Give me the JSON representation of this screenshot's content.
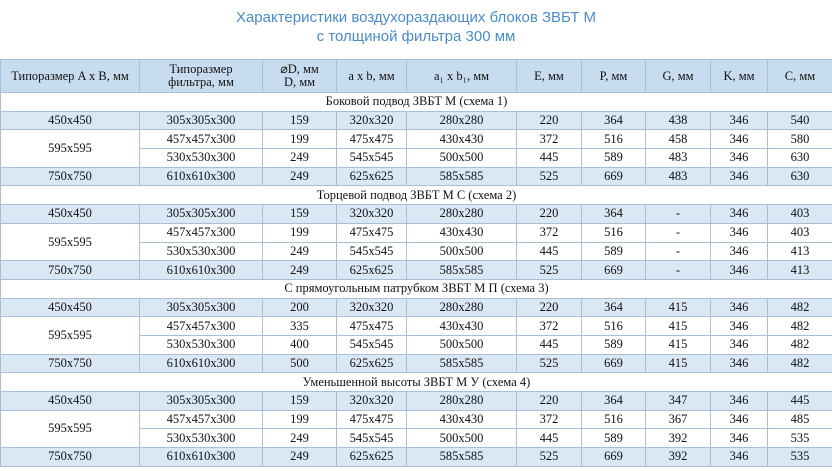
{
  "header": {
    "title": [
      "Характеристики воздухораздающих блоков ЗВБТ М",
      "с толщиной фильтра 300 мм"
    ]
  },
  "table": {
    "columns": [
      [
        "Типоразмер A x B, мм"
      ],
      [
        "Типоразмер",
        "фильтра, мм"
      ],
      [
        "⌀D, мм",
        "D, мм"
      ],
      [
        "a x b, мм"
      ],
      [
        "a₁ x b₁, мм"
      ],
      [
        "E, мм"
      ],
      [
        "P, мм"
      ],
      [
        "G, мм"
      ],
      [
        "K, мм"
      ],
      [
        "C, мм"
      ]
    ],
    "sections": [
      {
        "title": "Боковой подвод ЗВБТ М (схема 1)",
        "groups": [
          {
            "size": "450x450",
            "rows": [
              [
                "305x305x300",
                "159",
                "320x320",
                "280x280",
                "220",
                "364",
                "438",
                "346",
                "540"
              ]
            ]
          },
          {
            "size": "595x595",
            "rows": [
              [
                "457x457x300",
                "199",
                "475x475",
                "430x430",
                "372",
                "516",
                "458",
                "346",
                "580"
              ],
              [
                "530x530x300",
                "249",
                "545x545",
                "500x500",
                "445",
                "589",
                "483",
                "346",
                "630"
              ]
            ]
          },
          {
            "size": "750x750",
            "rows": [
              [
                "610x610x300",
                "249",
                "625x625",
                "585x585",
                "525",
                "669",
                "483",
                "346",
                "630"
              ]
            ]
          }
        ]
      },
      {
        "title": "Торцевой подвод ЗВБТ М С (схема 2)",
        "groups": [
          {
            "size": "450x450",
            "rows": [
              [
                "305x305x300",
                "159",
                "320x320",
                "280x280",
                "220",
                "364",
                "-",
                "346",
                "403"
              ]
            ]
          },
          {
            "size": "595x595",
            "rows": [
              [
                "457x457x300",
                "199",
                "475x475",
                "430x430",
                "372",
                "516",
                "-",
                "346",
                "403"
              ],
              [
                "530x530x300",
                "249",
                "545x545",
                "500x500",
                "445",
                "589",
                "-",
                "346",
                "413"
              ]
            ]
          },
          {
            "size": "750x750",
            "rows": [
              [
                "610x610x300",
                "249",
                "625x625",
                "585x585",
                "525",
                "669",
                "-",
                "346",
                "413"
              ]
            ]
          }
        ]
      },
      {
        "title": "С прямоугольным патрубком ЗВБТ М П (схема 3)",
        "groups": [
          {
            "size": "450x450",
            "rows": [
              [
                "305x305x300",
                "200",
                "320x320",
                "280x280",
                "220",
                "364",
                "415",
                "346",
                "482"
              ]
            ]
          },
          {
            "size": "595x595",
            "rows": [
              [
                "457x457x300",
                "335",
                "475x475",
                "430x430",
                "372",
                "516",
                "415",
                "346",
                "482"
              ],
              [
                "530x530x300",
                "400",
                "545x545",
                "500x500",
                "445",
                "589",
                "415",
                "346",
                "482"
              ]
            ]
          },
          {
            "size": "750x750",
            "rows": [
              [
                "610x610x300",
                "500",
                "625x625",
                "585x585",
                "525",
                "669",
                "415",
                "346",
                "482"
              ]
            ]
          }
        ]
      },
      {
        "title": "Уменьшенной высоты ЗВБТ М У (схема 4)",
        "groups": [
          {
            "size": "450x450",
            "rows": [
              [
                "305x305x300",
                "159",
                "320x320",
                "280x280",
                "220",
                "364",
                "347",
                "346",
                "445"
              ]
            ]
          },
          {
            "size": "595x595",
            "rows": [
              [
                "457x457x300",
                "199",
                "475x475",
                "430x430",
                "372",
                "516",
                "367",
                "346",
                "485"
              ],
              [
                "530x530x300",
                "249",
                "545x545",
                "500x500",
                "445",
                "589",
                "392",
                "346",
                "535"
              ]
            ]
          },
          {
            "size": "750x750",
            "rows": [
              [
                "610x610x300",
                "249",
                "625x625",
                "585x585",
                "525",
                "669",
                "392",
                "346",
                "535"
              ]
            ]
          }
        ]
      }
    ]
  }
}
